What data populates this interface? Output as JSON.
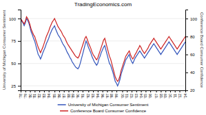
{
  "chart_data": {
    "type": "line",
    "title": "TradingEconomics.com",
    "ylabel": "University of Michigan Consumer Sentiment",
    "y2label": "Conference Board Consumer Confidence",
    "categories": [
      "'78",
      null,
      null,
      null,
      "'79",
      null,
      null,
      null,
      "'80",
      null,
      null,
      null,
      "'81",
      null,
      null,
      null,
      "'82",
      null,
      null,
      null,
      "'83",
      null,
      null,
      null,
      "'84",
      null,
      null,
      null,
      null,
      "'85",
      null,
      null,
      null,
      "'86",
      null,
      null,
      null,
      "'87",
      null,
      null,
      null,
      "'88",
      null,
      null,
      null,
      "'89",
      null,
      null,
      null,
      "'90",
      null,
      null,
      null,
      "'91",
      null,
      null,
      null,
      null,
      "'92",
      null,
      null,
      null,
      "'93",
      null,
      null,
      null,
      "'94",
      null,
      null,
      null,
      "'96",
      null,
      null,
      null,
      "'97",
      null,
      null,
      null,
      "'98",
      null,
      null,
      null,
      "'99",
      null,
      null,
      null,
      null,
      "'00",
      null,
      null,
      null,
      "'01",
      null,
      null,
      null,
      "'02",
      null,
      null,
      null,
      "'03",
      null,
      null,
      null,
      "'04",
      null,
      null,
      null,
      "'05",
      null,
      null,
      null,
      "'06",
      null,
      null,
      null,
      null,
      "'07",
      null,
      null,
      null,
      "'08",
      null,
      null,
      null,
      "'09",
      null,
      null,
      null,
      "'10",
      null,
      null,
      null,
      "'11",
      null,
      null,
      null,
      "'12",
      null,
      null,
      null,
      null,
      "'14"
    ],
    "series": [
      {
        "name": "University of Michigan Consumer Sentiment",
        "color": "#3355bb",
        "values": [
          100,
          97,
          95,
          92,
          95,
          100,
          98,
          95,
          90,
          85,
          82,
          78,
          75,
          70,
          65,
          60,
          58,
          55,
          58,
          62,
          65,
          68,
          72,
          75,
          78,
          82,
          85,
          88,
          90,
          92,
          88,
          85,
          82,
          80,
          78,
          75,
          72,
          70,
          68,
          65,
          62,
          60,
          57,
          55,
          52,
          50,
          48,
          46,
          45,
          44,
          46,
          50,
          55,
          60,
          65,
          70,
          75,
          72,
          68,
          65,
          62,
          58,
          55,
          52,
          50,
          48,
          50,
          55,
          58,
          62,
          65,
          68,
          70,
          65,
          60,
          55,
          50,
          48,
          44,
          40,
          35,
          30,
          28,
          25,
          28,
          32,
          38,
          42,
          46,
          50,
          54,
          56,
          58,
          60,
          55,
          52,
          50,
          53,
          56,
          58,
          60,
          62,
          64,
          62,
          60,
          58,
          56,
          58,
          60,
          62,
          64,
          66,
          68,
          70,
          72,
          70,
          68,
          66,
          64,
          62,
          60,
          62,
          64,
          66,
          68,
          70,
          72,
          74,
          72,
          70,
          68,
          66,
          64,
          62,
          60,
          62,
          64,
          66,
          68,
          70,
          72,
          74
        ]
      },
      {
        "name": "Conference Board Consumer Confidence",
        "color": "#cc2222",
        "axis": "y2",
        "values": [
          100,
          98,
          96,
          94,
          97,
          102,
          100,
          97,
          93,
          88,
          85,
          82,
          80,
          76,
          72,
          68,
          65,
          62,
          65,
          68,
          72,
          76,
          80,
          83,
          86,
          90,
          93,
          96,
          98,
          100,
          97,
          94,
          91,
          89,
          87,
          85,
          82,
          80,
          78,
          75,
          72,
          70,
          68,
          66,
          64,
          62,
          60,
          58,
          57,
          56,
          58,
          62,
          66,
          70,
          74,
          78,
          80,
          77,
          73,
          70,
          67,
          63,
          60,
          58,
          56,
          54,
          56,
          60,
          64,
          68,
          72,
          76,
          78,
          73,
          68,
          63,
          58,
          55,
          50,
          45,
          40,
          35,
          32,
          30,
          32,
          36,
          42,
          46,
          50,
          54,
          58,
          60,
          62,
          64,
          60,
          57,
          55,
          57,
          60,
          62,
          65,
          67,
          70,
          68,
          65,
          63,
          61,
          63,
          65,
          67,
          70,
          72,
          74,
          76,
          78,
          76,
          74,
          72,
          70,
          68,
          66,
          68,
          70,
          72,
          74,
          76,
          78,
          80,
          78,
          76,
          74,
          72,
          70,
          68,
          66,
          68,
          70,
          72,
          74,
          76,
          78,
          80
        ]
      }
    ],
    "ylim": [
      20,
      110
    ],
    "yticks": [
      25,
      50,
      75,
      100
    ],
    "y2lim": [
      20,
      110
    ],
    "y2ticks": [
      20,
      40,
      60,
      80,
      100
    ],
    "grid": true,
    "legend": "bottom"
  }
}
